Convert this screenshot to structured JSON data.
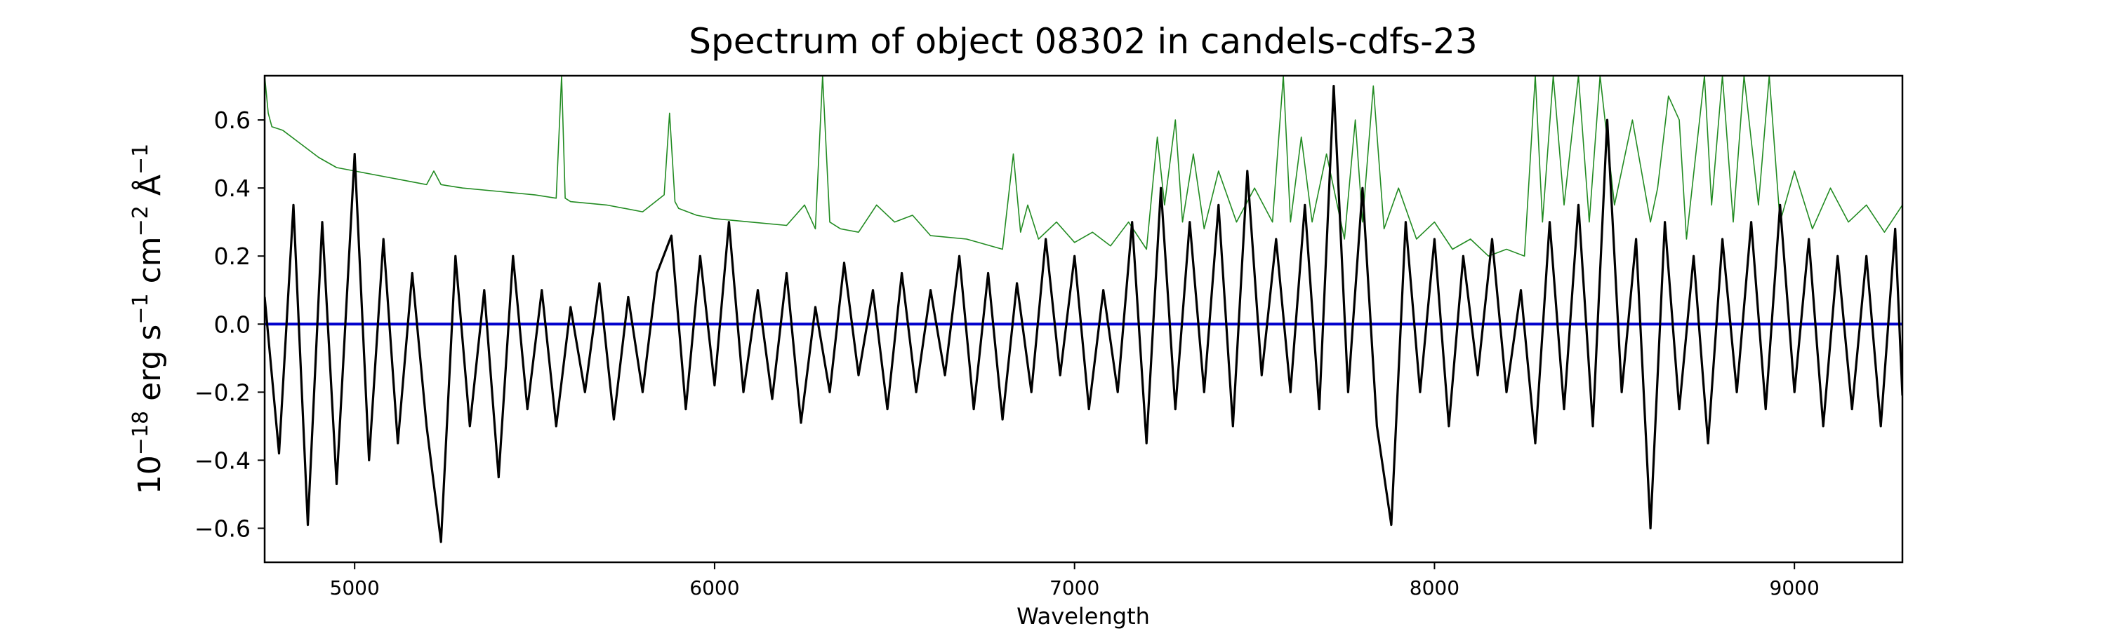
{
  "chart_data": {
    "type": "line",
    "title": "Spectrum of object 08302 in candels-cdfs-23",
    "xlabel": "Wavelength",
    "ylabel": {
      "base": "10",
      "exp1": "−18",
      "unit1": " erg s",
      "exp2": "−1",
      "unit2": " cm",
      "exp3": "−2",
      "unit3": " Å",
      "exp4": "−1"
    },
    "xlim": [
      4750,
      9300
    ],
    "ylim": [
      -0.7,
      0.73
    ],
    "x_ticks": [
      5000,
      6000,
      7000,
      8000,
      9000
    ],
    "x_tick_labels": [
      "5000",
      "6000",
      "7000",
      "8000",
      "9000"
    ],
    "y_ticks": [
      -0.6,
      -0.4,
      -0.2,
      0.0,
      0.2,
      0.4,
      0.6
    ],
    "y_tick_labels": [
      "−0.6",
      "−0.4",
      "−0.2",
      "0.0",
      "0.2",
      "0.4",
      "0.6"
    ],
    "grid": false,
    "series": [
      {
        "color": "#228b22",
        "role": "error",
        "x": [
          4750,
          4760,
          4770,
          4800,
          4850,
          4900,
          4950,
          5000,
          5100,
          5200,
          5220,
          5240,
          5300,
          5400,
          5500,
          5560,
          5575,
          5585,
          5600,
          5700,
          5800,
          5860,
          5875,
          5890,
          5900,
          5950,
          6000,
          6100,
          6200,
          6250,
          6280,
          6300,
          6320,
          6350,
          6400,
          6450,
          6500,
          6550,
          6600,
          6700,
          6800,
          6830,
          6850,
          6870,
          6900,
          6950,
          7000,
          7050,
          7100,
          7150,
          7200,
          7230,
          7250,
          7280,
          7300,
          7330,
          7360,
          7400,
          7450,
          7500,
          7550,
          7580,
          7600,
          7630,
          7660,
          7700,
          7750,
          7780,
          7800,
          7830,
          7860,
          7900,
          7950,
          8000,
          8050,
          8100,
          8150,
          8200,
          8250,
          8280,
          8300,
          8330,
          8360,
          8400,
          8430,
          8460,
          8500,
          8550,
          8600,
          8620,
          8650,
          8680,
          8700,
          8750,
          8770,
          8800,
          8830,
          8860,
          8900,
          8930,
          8960,
          9000,
          9050,
          9100,
          9150,
          9200,
          9250,
          9300
        ],
        "y": [
          0.73,
          0.62,
          0.58,
          0.57,
          0.53,
          0.49,
          0.46,
          0.45,
          0.43,
          0.41,
          0.45,
          0.41,
          0.4,
          0.39,
          0.38,
          0.37,
          0.73,
          0.37,
          0.36,
          0.35,
          0.33,
          0.38,
          0.62,
          0.36,
          0.34,
          0.32,
          0.31,
          0.3,
          0.29,
          0.35,
          0.28,
          0.73,
          0.3,
          0.28,
          0.27,
          0.35,
          0.3,
          0.32,
          0.26,
          0.25,
          0.22,
          0.5,
          0.27,
          0.35,
          0.25,
          0.3,
          0.24,
          0.27,
          0.23,
          0.3,
          0.22,
          0.55,
          0.35,
          0.6,
          0.3,
          0.5,
          0.28,
          0.45,
          0.3,
          0.4,
          0.3,
          0.73,
          0.3,
          0.55,
          0.3,
          0.5,
          0.25,
          0.6,
          0.3,
          0.7,
          0.28,
          0.4,
          0.25,
          0.3,
          0.22,
          0.25,
          0.2,
          0.22,
          0.2,
          0.73,
          0.3,
          0.73,
          0.35,
          0.73,
          0.3,
          0.73,
          0.35,
          0.6,
          0.3,
          0.4,
          0.67,
          0.6,
          0.25,
          0.73,
          0.35,
          0.73,
          0.3,
          0.73,
          0.35,
          0.73,
          0.3,
          0.45,
          0.28,
          0.4,
          0.3,
          0.35,
          0.27,
          0.35
        ]
      },
      {
        "color": "#0000cc",
        "role": "continuum",
        "x": [
          4750,
          9300
        ],
        "y": [
          0.0,
          0.0
        ]
      },
      {
        "color": "#000000",
        "role": "flux",
        "x": [
          4750,
          4790,
          4830,
          4870,
          4910,
          4950,
          5000,
          5040,
          5080,
          5120,
          5160,
          5200,
          5240,
          5280,
          5320,
          5360,
          5400,
          5440,
          5480,
          5520,
          5560,
          5600,
          5640,
          5680,
          5720,
          5760,
          5800,
          5840,
          5880,
          5920,
          5960,
          6000,
          6040,
          6080,
          6120,
          6160,
          6200,
          6240,
          6280,
          6320,
          6360,
          6400,
          6440,
          6480,
          6520,
          6560,
          6600,
          6640,
          6680,
          6720,
          6760,
          6800,
          6840,
          6880,
          6920,
          6960,
          7000,
          7040,
          7080,
          7120,
          7160,
          7200,
          7240,
          7280,
          7320,
          7360,
          7400,
          7440,
          7480,
          7520,
          7560,
          7600,
          7640,
          7680,
          7720,
          7760,
          7800,
          7840,
          7880,
          7920,
          7960,
          8000,
          8040,
          8080,
          8120,
          8160,
          8200,
          8240,
          8280,
          8320,
          8360,
          8400,
          8440,
          8480,
          8520,
          8560,
          8600,
          8640,
          8680,
          8720,
          8760,
          8800,
          8840,
          8880,
          8920,
          8960,
          9000,
          9040,
          9080,
          9120,
          9160,
          9200,
          9240,
          9280,
          9300
        ],
        "y": [
          0.08,
          -0.38,
          0.35,
          -0.59,
          0.3,
          -0.47,
          0.5,
          -0.4,
          0.25,
          -0.35,
          0.15,
          -0.3,
          -0.64,
          0.2,
          -0.3,
          0.1,
          -0.45,
          0.2,
          -0.25,
          0.1,
          -0.3,
          0.05,
          -0.2,
          0.12,
          -0.28,
          0.08,
          -0.2,
          0.15,
          0.26,
          -0.25,
          0.2,
          -0.18,
          0.3,
          -0.2,
          0.1,
          -0.22,
          0.15,
          -0.29,
          0.05,
          -0.2,
          0.18,
          -0.15,
          0.1,
          -0.25,
          0.15,
          -0.2,
          0.1,
          -0.15,
          0.2,
          -0.25,
          0.15,
          -0.28,
          0.12,
          -0.2,
          0.25,
          -0.15,
          0.2,
          -0.25,
          0.1,
          -0.2,
          0.3,
          -0.35,
          0.4,
          -0.25,
          0.3,
          -0.2,
          0.35,
          -0.3,
          0.45,
          -0.15,
          0.25,
          -0.2,
          0.35,
          -0.25,
          0.7,
          -0.2,
          0.4,
          -0.3,
          -0.59,
          0.3,
          -0.2,
          0.25,
          -0.3,
          0.2,
          -0.15,
          0.25,
          -0.2,
          0.1,
          -0.35,
          0.3,
          -0.25,
          0.35,
          -0.3,
          0.6,
          -0.2,
          0.25,
          -0.6,
          0.3,
          -0.25,
          0.2,
          -0.35,
          0.25,
          -0.2,
          0.3,
          -0.25,
          0.35,
          -0.2,
          0.25,
          -0.3,
          0.2,
          -0.25,
          0.2,
          -0.3,
          0.28,
          -0.21
        ]
      }
    ]
  }
}
